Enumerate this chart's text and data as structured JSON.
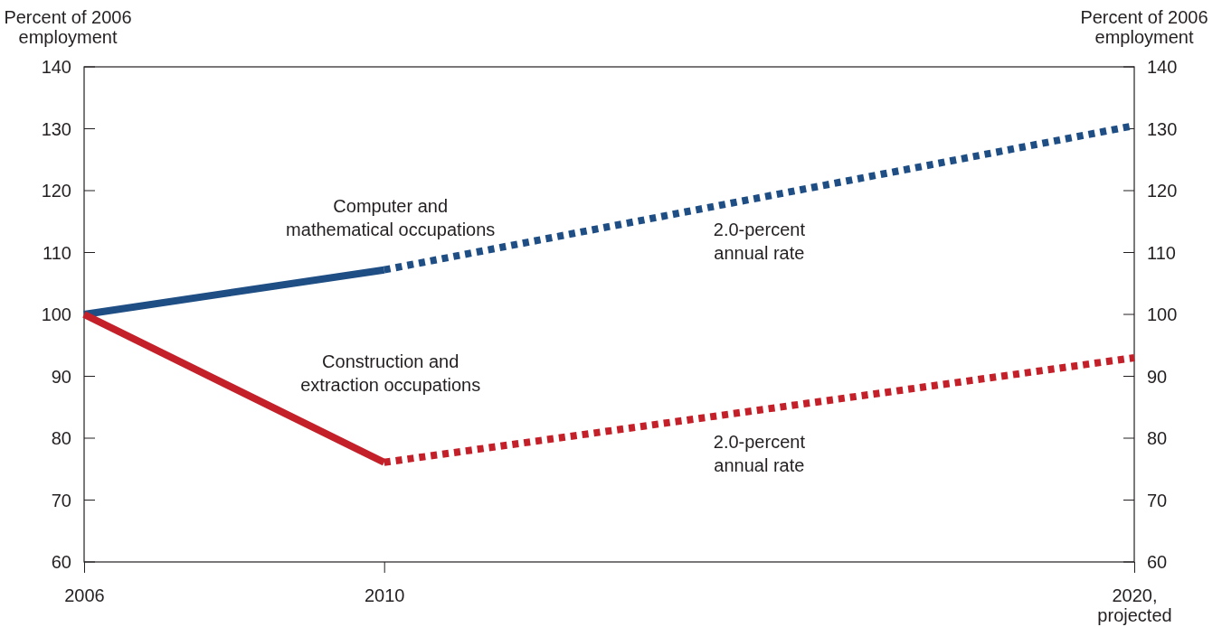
{
  "chart_data": {
    "type": "line",
    "ylabel": "Percent of 2006\nemployment",
    "y2label": "Percent of 2006\nemployment",
    "xlim": [
      2006,
      2020
    ],
    "xticks": [
      2006,
      2010,
      {
        "value": 2020,
        "label": "2020,\nprojected"
      }
    ],
    "ylim": [
      60,
      140
    ],
    "yticks": [
      60,
      70,
      80,
      90,
      100,
      110,
      120,
      130,
      140
    ],
    "y2lim": [
      60,
      140
    ],
    "y2ticks": [
      60,
      70,
      80,
      90,
      100,
      110,
      120,
      130,
      140
    ],
    "grid": false,
    "marker": "none",
    "series": [
      {
        "name": "Computer and\nmathematical occupations",
        "color": "#1f4e85",
        "line_style": "solid",
        "x": [
          2006,
          2010
        ],
        "values": [
          100,
          107.2
        ]
      },
      {
        "color": "#1f4e85",
        "line_style": "dotted",
        "x": [
          2010,
          2020
        ],
        "values": [
          107.2,
          130.5
        ]
      },
      {
        "name": "Construction and\nextraction occupations",
        "color": "#c4202a",
        "line_style": "solid",
        "x": [
          2006,
          2010
        ],
        "values": [
          100,
          76.1
        ]
      },
      {
        "color": "#c4202a",
        "line_style": "dotted",
        "x": [
          2010,
          2020
        ],
        "values": [
          76.1,
          93.0
        ]
      }
    ],
    "annotations": [
      "2.0-percent\nannual rate",
      "2.0-percent\nannual rate"
    ]
  }
}
